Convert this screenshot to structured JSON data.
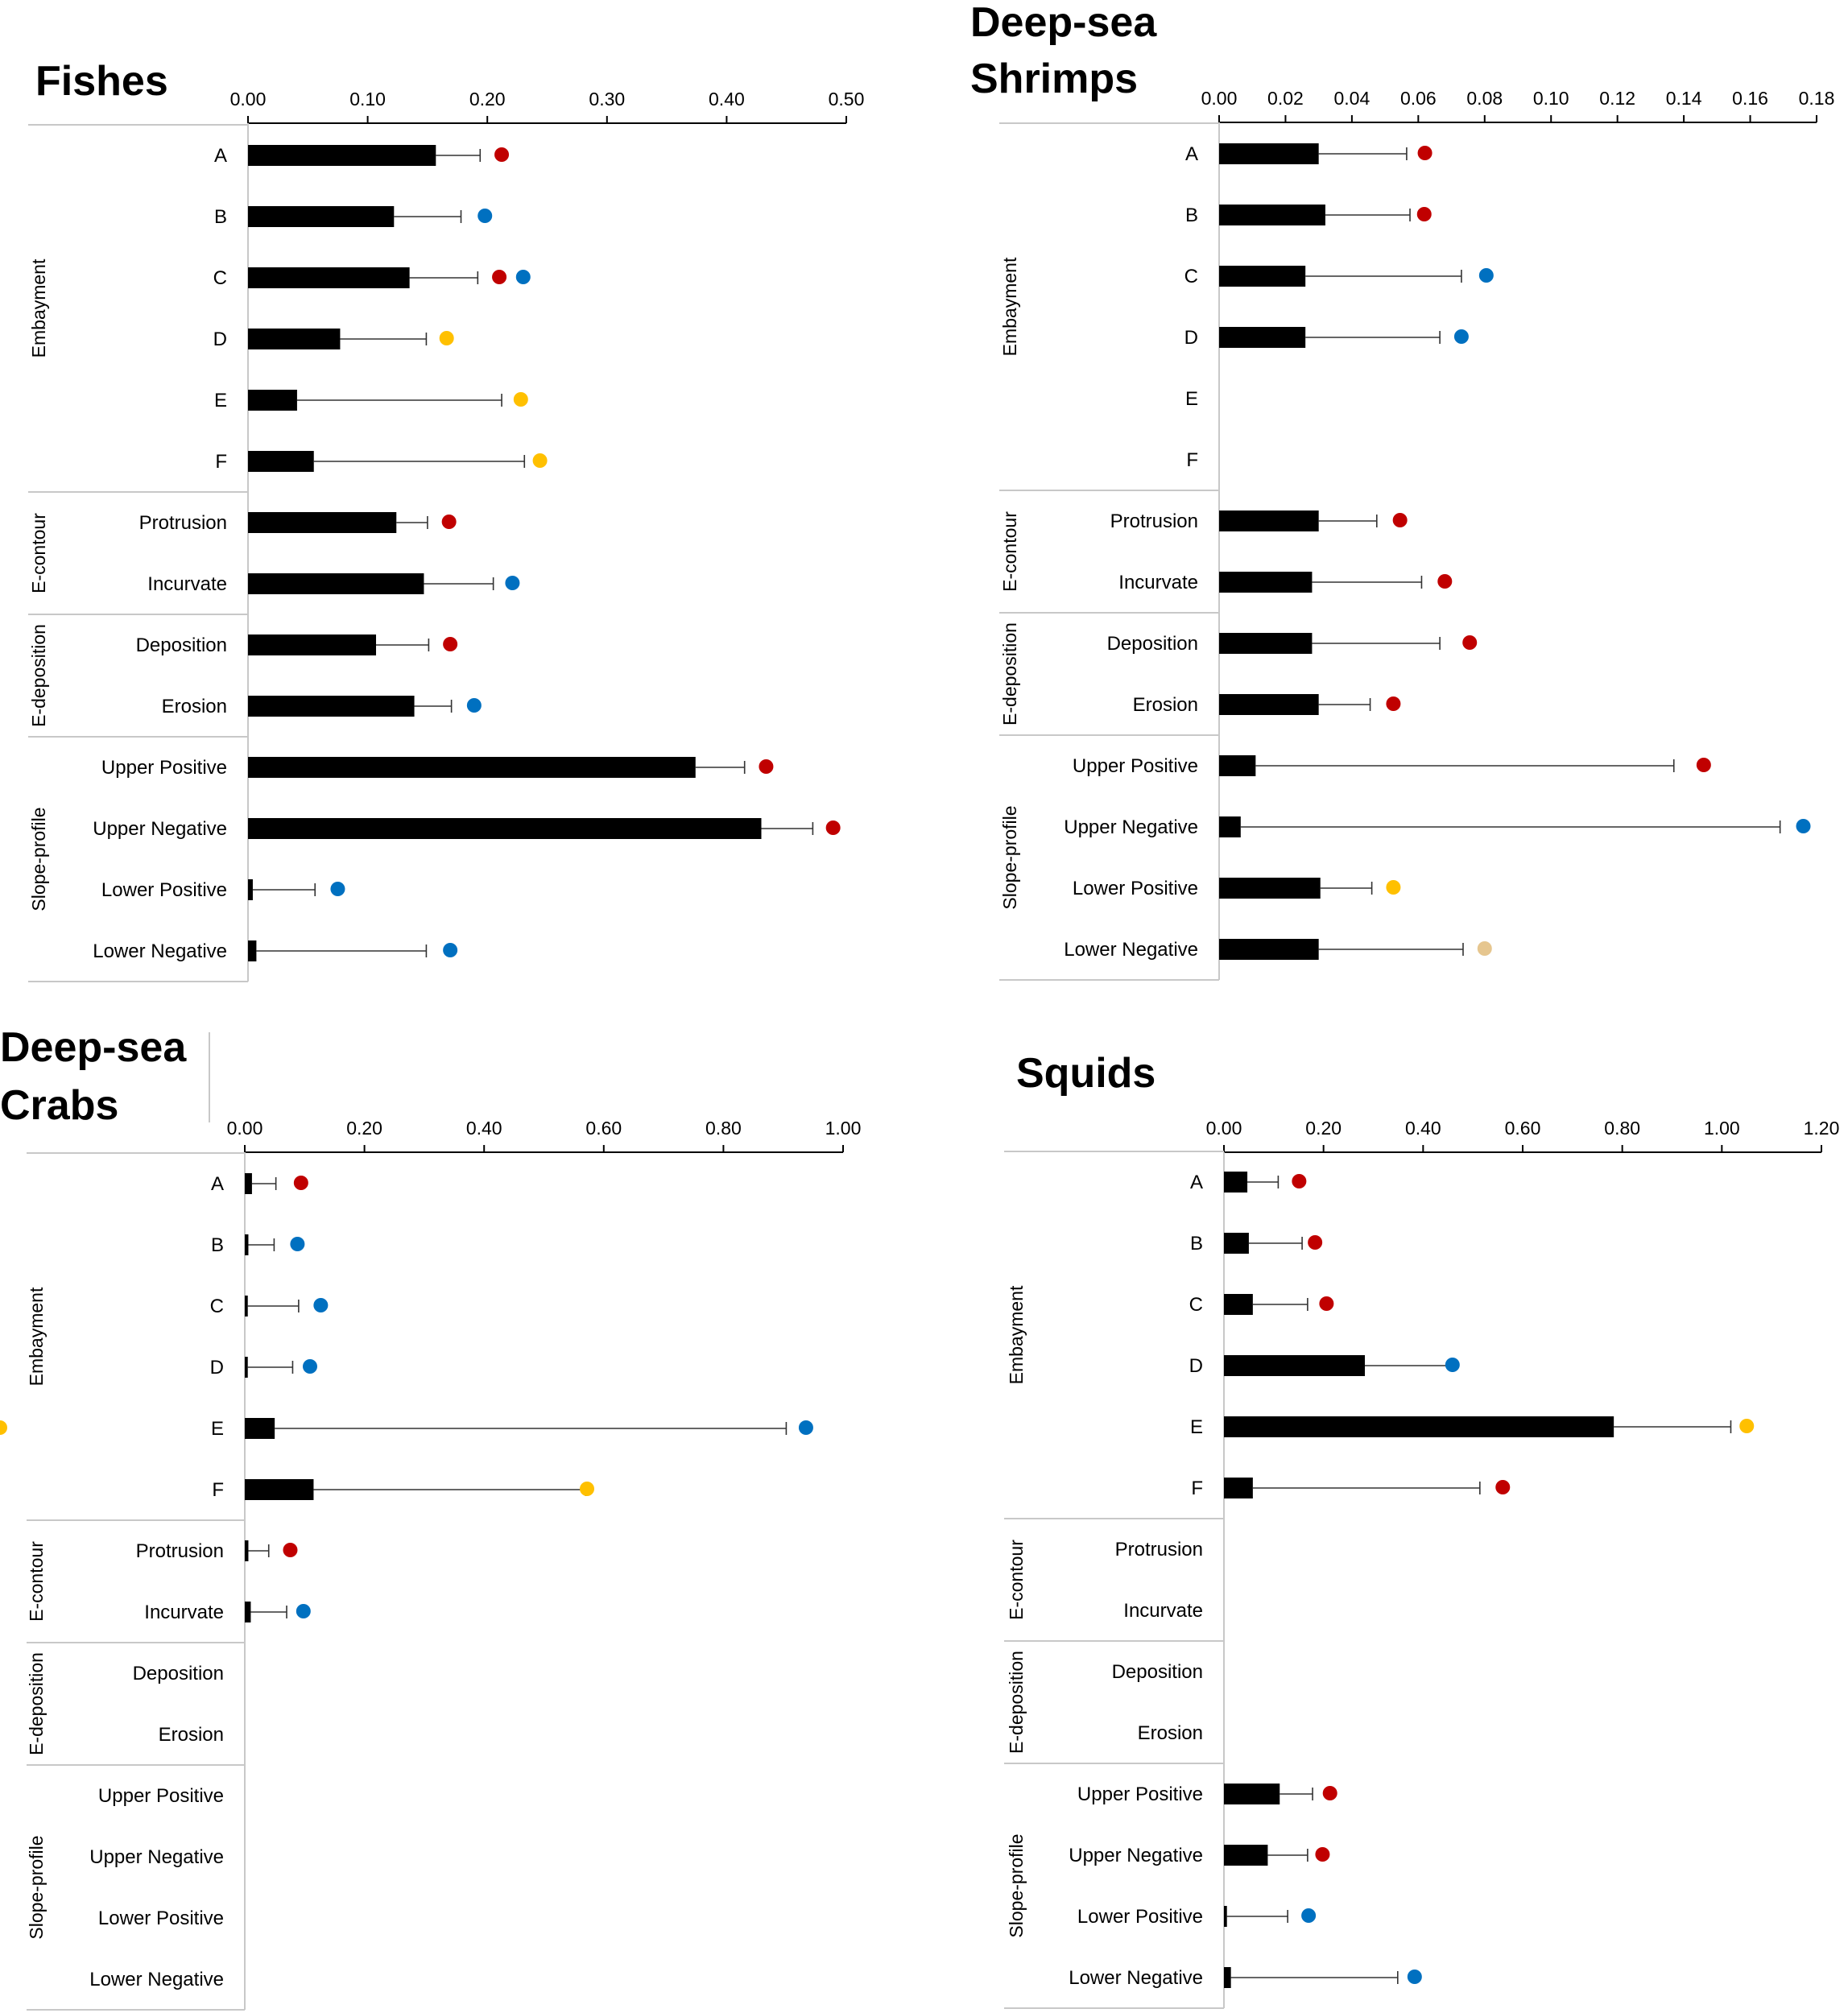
{
  "colors": {
    "red": "#c00000",
    "blue": "#0070c0",
    "yellow": "#ffc000",
    "tan": "#e6c68f",
    "bar": "#000000"
  },
  "chart_data": [
    {
      "type": "bar",
      "title_lines": [
        "Fishes"
      ],
      "ticks": [
        "0.00",
        "0.10",
        "0.20",
        "0.30",
        "0.40",
        "0.50"
      ],
      "xlim": [
        0,
        0.5
      ],
      "groups": [
        {
          "label": "Embayment",
          "categories": [
            "A",
            "B",
            "C",
            "D",
            "E",
            "F"
          ]
        },
        {
          "label": "E-contour",
          "categories": [
            "Protrusion",
            "Incurvate"
          ]
        },
        {
          "label": "E-deposition",
          "categories": [
            "Deposition",
            "Erosion"
          ]
        },
        {
          "label": "Slope-profile",
          "categories": [
            "Upper Positive",
            "Upper Negative",
            "Lower Positive",
            "Lower Negative"
          ]
        }
      ],
      "values": [
        0.157,
        0.122,
        0.135,
        0.077,
        0.041,
        0.055,
        0.124,
        0.147,
        0.107,
        0.139,
        0.374,
        0.429,
        0.004,
        0.007
      ],
      "errors": [
        0.037,
        0.056,
        0.057,
        0.072,
        0.171,
        0.176,
        0.026,
        0.058,
        0.044,
        0.031,
        0.041,
        0.043,
        0.052,
        0.142
      ],
      "markers": [
        [
          "red"
        ],
        [
          "blue"
        ],
        [
          "red",
          "blue"
        ],
        [
          "yellow"
        ],
        [
          "yellow"
        ],
        [
          "yellow"
        ],
        [
          "red"
        ],
        [
          "blue"
        ],
        [
          "red"
        ],
        [
          "blue"
        ],
        [
          "red"
        ],
        [
          "red"
        ],
        [
          "blue"
        ],
        [
          "blue"
        ]
      ],
      "marker_x": [
        [
          0.212
        ],
        [
          0.198
        ],
        [
          0.21,
          0.23
        ],
        [
          0.166
        ],
        [
          0.228
        ],
        [
          0.244
        ],
        [
          0.168
        ],
        [
          0.221
        ],
        [
          0.169
        ],
        [
          0.189
        ],
        [
          0.433
        ],
        [
          0.489
        ],
        [
          0.075
        ],
        [
          0.169
        ]
      ]
    },
    {
      "type": "bar",
      "title_lines": [
        "Deep-sea",
        "Shrimps"
      ],
      "ticks": [
        "0.00",
        "0.02",
        "0.04",
        "0.06",
        "0.08",
        "0.10",
        "0.12",
        "0.14",
        "0.16",
        "0.18"
      ],
      "xlim": [
        0,
        0.18
      ],
      "groups": [
        {
          "label": "Embayment",
          "categories": [
            "A",
            "B",
            "C",
            "D",
            "E",
            "F"
          ]
        },
        {
          "label": "E-contour",
          "categories": [
            "Protrusion",
            "Incurvate"
          ]
        },
        {
          "label": "E-deposition",
          "categories": [
            "Deposition",
            "Erosion"
          ]
        },
        {
          "label": "Slope-profile",
          "categories": [
            "Upper Positive",
            "Upper Negative",
            "Lower Positive",
            "Lower Negative"
          ]
        }
      ],
      "values": [
        0.03,
        0.032,
        0.026,
        0.026,
        null,
        null,
        0.03,
        0.028,
        0.028,
        0.03,
        0.011,
        0.0065,
        0.0305,
        0.03
      ],
      "errors": [
        0.0265,
        0.0255,
        0.047,
        0.0405,
        null,
        null,
        0.0175,
        0.033,
        0.0385,
        0.0155,
        0.126,
        0.1625,
        0.0155,
        0.0435
      ],
      "markers": [
        [
          "red"
        ],
        [
          "red"
        ],
        [
          "blue"
        ],
        [
          "blue"
        ],
        [],
        [],
        [
          "red"
        ],
        [
          "red"
        ],
        [
          "red"
        ],
        [
          "red"
        ],
        [
          "red"
        ],
        [
          "blue"
        ],
        [
          "yellow"
        ],
        [
          "tan"
        ]
      ],
      "marker_x": [
        [
          0.062
        ],
        [
          0.0618
        ],
        [
          0.0805
        ],
        [
          0.073
        ],
        [],
        [],
        [
          0.0545
        ],
        [
          0.068
        ],
        [
          0.0755
        ],
        [
          0.0525
        ],
        [
          0.146
        ],
        [
          0.176
        ],
        [
          0.0525
        ],
        [
          0.08
        ]
      ]
    },
    {
      "type": "bar",
      "title_lines": [
        "Deep-sea",
        "Crabs"
      ],
      "ticks": [
        "0.00",
        "0.20",
        "0.40",
        "0.60",
        "0.80",
        "1.00"
      ],
      "xlim": [
        0,
        1.0
      ],
      "groups": [
        {
          "label": "Embayment",
          "categories": [
            "A",
            "B",
            "C",
            "D",
            "E",
            "F"
          ]
        },
        {
          "label": "E-contour",
          "categories": [
            "Protrusion",
            "Incurvate"
          ]
        },
        {
          "label": "E-deposition",
          "categories": [
            "Deposition",
            "Erosion"
          ]
        },
        {
          "label": "Slope-profile",
          "categories": [
            "Upper Positive",
            "Upper Negative",
            "Lower Positive",
            "Lower Negative"
          ]
        }
      ],
      "values": [
        0.012,
        0.006,
        0.005,
        0.005,
        0.05,
        0.115,
        0.006,
        0.01,
        null,
        null,
        null,
        null,
        null,
        null
      ],
      "errors": [
        0.04,
        0.043,
        0.085,
        0.075,
        0.855,
        0.455,
        0.034,
        0.06,
        null,
        null,
        null,
        null,
        null,
        null
      ],
      "markers": [
        [
          "red"
        ],
        [
          "blue"
        ],
        [
          "blue"
        ],
        [
          "blue"
        ],
        [
          "blue",
          "yellow"
        ],
        [
          "yellow"
        ],
        [
          "red"
        ],
        [
          "blue"
        ],
        [],
        [],
        [],
        [],
        [],
        []
      ],
      "marker_x": [
        [
          0.094
        ],
        [
          0.088
        ],
        [
          0.127
        ],
        [
          0.109
        ],
        [
          0.938
        ],
        [
          0.572
        ],
        [
          0.076
        ],
        [
          0.098
        ],
        [],
        [],
        [],
        [],
        [],
        []
      ]
    },
    {
      "type": "bar",
      "title_lines": [
        "Squids"
      ],
      "ticks": [
        "0.00",
        "0.20",
        "0.40",
        "0.60",
        "0.80",
        "1.00",
        "1.20"
      ],
      "xlim": [
        0,
        1.2
      ],
      "groups": [
        {
          "label": "Embayment",
          "categories": [
            "A",
            "B",
            "C",
            "D",
            "E",
            "F"
          ]
        },
        {
          "label": "E-contour",
          "categories": [
            "Protrusion",
            "Incurvate"
          ]
        },
        {
          "label": "E-deposition",
          "categories": [
            "Deposition",
            "Erosion"
          ]
        },
        {
          "label": "Slope-profile",
          "categories": [
            "Upper Positive",
            "Upper Negative",
            "Lower Positive",
            "Lower Negative"
          ]
        }
      ],
      "values": [
        0.047,
        0.05,
        0.058,
        0.283,
        0.783,
        0.058,
        null,
        null,
        null,
        null,
        0.112,
        0.088,
        0.006,
        0.014
      ],
      "errors": [
        0.062,
        0.107,
        0.11,
        0.176,
        0.235,
        0.456,
        null,
        null,
        null,
        null,
        0.066,
        0.08,
        0.122,
        0.335
      ],
      "markers": [
        [
          "red"
        ],
        [
          "red"
        ],
        [
          "red"
        ],
        [
          "blue"
        ],
        [
          "yellow"
        ],
        [
          "red"
        ],
        [],
        [],
        [],
        [],
        [
          "red"
        ],
        [
          "red"
        ],
        [
          "blue"
        ],
        [
          "blue"
        ]
      ],
      "marker_x": [
        [
          0.151
        ],
        [
          0.183
        ],
        [
          0.206
        ],
        [
          0.459
        ],
        [
          1.05
        ],
        [
          0.56
        ],
        [],
        [],
        [],
        [],
        [
          0.213
        ],
        [
          0.198
        ],
        [
          0.17
        ],
        [
          0.383
        ]
      ]
    }
  ]
}
